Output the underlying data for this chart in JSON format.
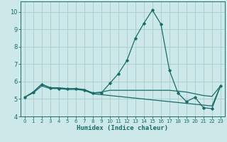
{
  "title": "",
  "xlabel": "Humidex (Indice chaleur)",
  "ylabel": "",
  "background_color": "#cce8e8",
  "grid_color": "#aacccc",
  "line_color": "#1a6b6b",
  "xlim": [
    -0.5,
    23.5
  ],
  "ylim": [
    4.0,
    10.6
  ],
  "xticks": [
    0,
    1,
    2,
    3,
    4,
    5,
    6,
    7,
    8,
    9,
    10,
    11,
    12,
    13,
    14,
    15,
    16,
    17,
    18,
    19,
    20,
    21,
    22,
    23
  ],
  "yticks": [
    4,
    5,
    6,
    7,
    8,
    9,
    10
  ],
  "series": [
    [
      5.1,
      5.4,
      5.85,
      5.65,
      5.6,
      5.6,
      5.6,
      5.5,
      5.35,
      5.35,
      5.9,
      6.45,
      7.2,
      8.5,
      9.35,
      10.1,
      9.3,
      6.65,
      5.35,
      4.85,
      5.1,
      4.5,
      4.45,
      5.75
    ],
    [
      5.1,
      5.4,
      5.85,
      5.65,
      5.65,
      5.6,
      5.6,
      5.55,
      5.35,
      5.4,
      5.5,
      5.5,
      5.5,
      5.5,
      5.5,
      5.5,
      5.5,
      5.5,
      5.45,
      5.4,
      5.3,
      5.2,
      5.15,
      5.75
    ],
    [
      5.1,
      5.35,
      5.75,
      5.6,
      5.6,
      5.55,
      5.55,
      5.5,
      5.3,
      5.25,
      5.2,
      5.15,
      5.1,
      5.05,
      5.0,
      4.95,
      4.9,
      4.85,
      4.8,
      4.75,
      4.7,
      4.65,
      4.6,
      5.75
    ]
  ]
}
